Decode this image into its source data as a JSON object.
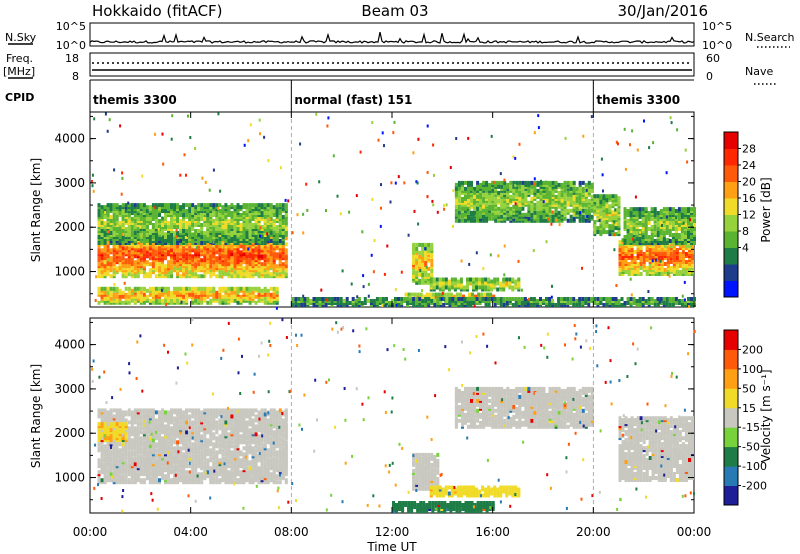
{
  "header": {
    "station": "Hokkaido (fitACF)",
    "beam": "Beam 03",
    "date": "30/Jan/2016"
  },
  "top_panels": {
    "nsky_label": "N.Sky",
    "nsky_ticks": [
      "10^5",
      "10^0"
    ],
    "nsearch_label": "N.Search",
    "nsearch_ticks": [
      "10^5",
      "10^0"
    ],
    "freq_label_1": "Freq.",
    "freq_label_2": "[MHz]",
    "freq_ticks": [
      "18",
      "8"
    ],
    "nave_label": "Nave",
    "nave_ticks": [
      "60",
      "0"
    ],
    "cpid_label": "CPID"
  },
  "cpid_segments": [
    {
      "label": "themis 3300",
      "start_h": 0,
      "end_h": 8
    },
    {
      "label": "normal (fast) 151",
      "start_h": 8,
      "end_h": 20
    },
    {
      "label": "themis 3300",
      "start_h": 20,
      "end_h": 24
    }
  ],
  "chart_data": [
    {
      "type": "heatmap",
      "panel": "power",
      "ylabel": "Slant Range [km]",
      "yticks": [
        "4000",
        "3000",
        "2000",
        "1000"
      ],
      "ylim": [
        200,
        4600
      ],
      "xlim": [
        0,
        24
      ],
      "colorbar_label": "Power [dB]",
      "colorbar_ticks": [
        "28",
        "24",
        "20",
        "16",
        "12",
        "8",
        "4"
      ],
      "colorbar_colors": [
        "#0014ff",
        "#1e3c8c",
        "#1e7d46",
        "#5ab432",
        "#96d23c",
        "#f0dc28",
        "#ffa014",
        "#ff5a0a",
        "#ff2800",
        "#e60000"
      ],
      "blobs": [
        {
          "x0": 0.3,
          "x1": 7.8,
          "y0": 850,
          "y1": 1800,
          "v": 0.85
        },
        {
          "x0": 0.3,
          "x1": 7.8,
          "y0": 1600,
          "y1": 2500,
          "v": 0.45
        },
        {
          "x0": 0.3,
          "x1": 7.5,
          "y0": 250,
          "y1": 600,
          "v": 0.7
        },
        {
          "x0": 12.8,
          "x1": 13.6,
          "y0": 700,
          "y1": 1600,
          "v": 0.65
        },
        {
          "x0": 13.5,
          "x1": 17.0,
          "y0": 550,
          "y1": 800,
          "v": 0.55
        },
        {
          "x0": 12.5,
          "x1": 16.0,
          "y0": 300,
          "y1": 450,
          "v": 0.7
        },
        {
          "x0": 14.5,
          "x1": 20.0,
          "y0": 2100,
          "y1": 3000,
          "v": 0.45
        },
        {
          "x0": 20.0,
          "x1": 21.0,
          "y0": 1800,
          "y1": 2700,
          "v": 0.5
        },
        {
          "x0": 21.0,
          "x1": 24.0,
          "y0": 900,
          "y1": 1700,
          "v": 0.8
        },
        {
          "x0": 21.2,
          "x1": 24.0,
          "y0": 1600,
          "y1": 2400,
          "v": 0.45
        },
        {
          "x0": 8.0,
          "x1": 24.0,
          "y0": 200,
          "y1": 350,
          "v": 0.35
        }
      ]
    },
    {
      "type": "heatmap",
      "panel": "velocity",
      "ylabel": "Slant Range [km]",
      "yticks": [
        "4000",
        "3000",
        "2000",
        "1000"
      ],
      "ylim": [
        200,
        4600
      ],
      "xlim": [
        0,
        24
      ],
      "xticks": [
        "00:00",
        "04:00",
        "08:00",
        "12:00",
        "16:00",
        "20:00",
        "00:00"
      ],
      "xlabel": "Time UT",
      "colorbar_label": "Velocity [m s⁻¹]",
      "colorbar_ticks": [
        "200",
        "100",
        "50",
        "15",
        "-15",
        "-50",
        "-100",
        "-200"
      ],
      "colorbar_colors": [
        "#1e1e96",
        "#287ab4",
        "#1e7d46",
        "#78d23c",
        "#c8c8c0",
        "#f0dc28",
        "#ffa014",
        "#ff5a0a",
        "#e60000"
      ],
      "blobs": [
        {
          "x0": 0.3,
          "x1": 7.8,
          "y0": 850,
          "y1": 2500,
          "v": 0.0
        },
        {
          "x0": 12.8,
          "x1": 13.8,
          "y0": 700,
          "y1": 1500,
          "v": 0.0
        },
        {
          "x0": 13.5,
          "x1": 17.0,
          "y0": 550,
          "y1": 750,
          "v": 0.3
        },
        {
          "x0": 12.0,
          "x1": 16.0,
          "y0": 200,
          "y1": 400,
          "v": -0.5
        },
        {
          "x0": 14.5,
          "x1": 20.0,
          "y0": 2100,
          "y1": 3000,
          "v": 0.0
        },
        {
          "x0": 21.0,
          "x1": 24.0,
          "y0": 900,
          "y1": 2300,
          "v": 0.0
        },
        {
          "x0": 0.3,
          "x1": 1.5,
          "y0": 1800,
          "y1": 2200,
          "v": 0.35
        }
      ]
    }
  ]
}
